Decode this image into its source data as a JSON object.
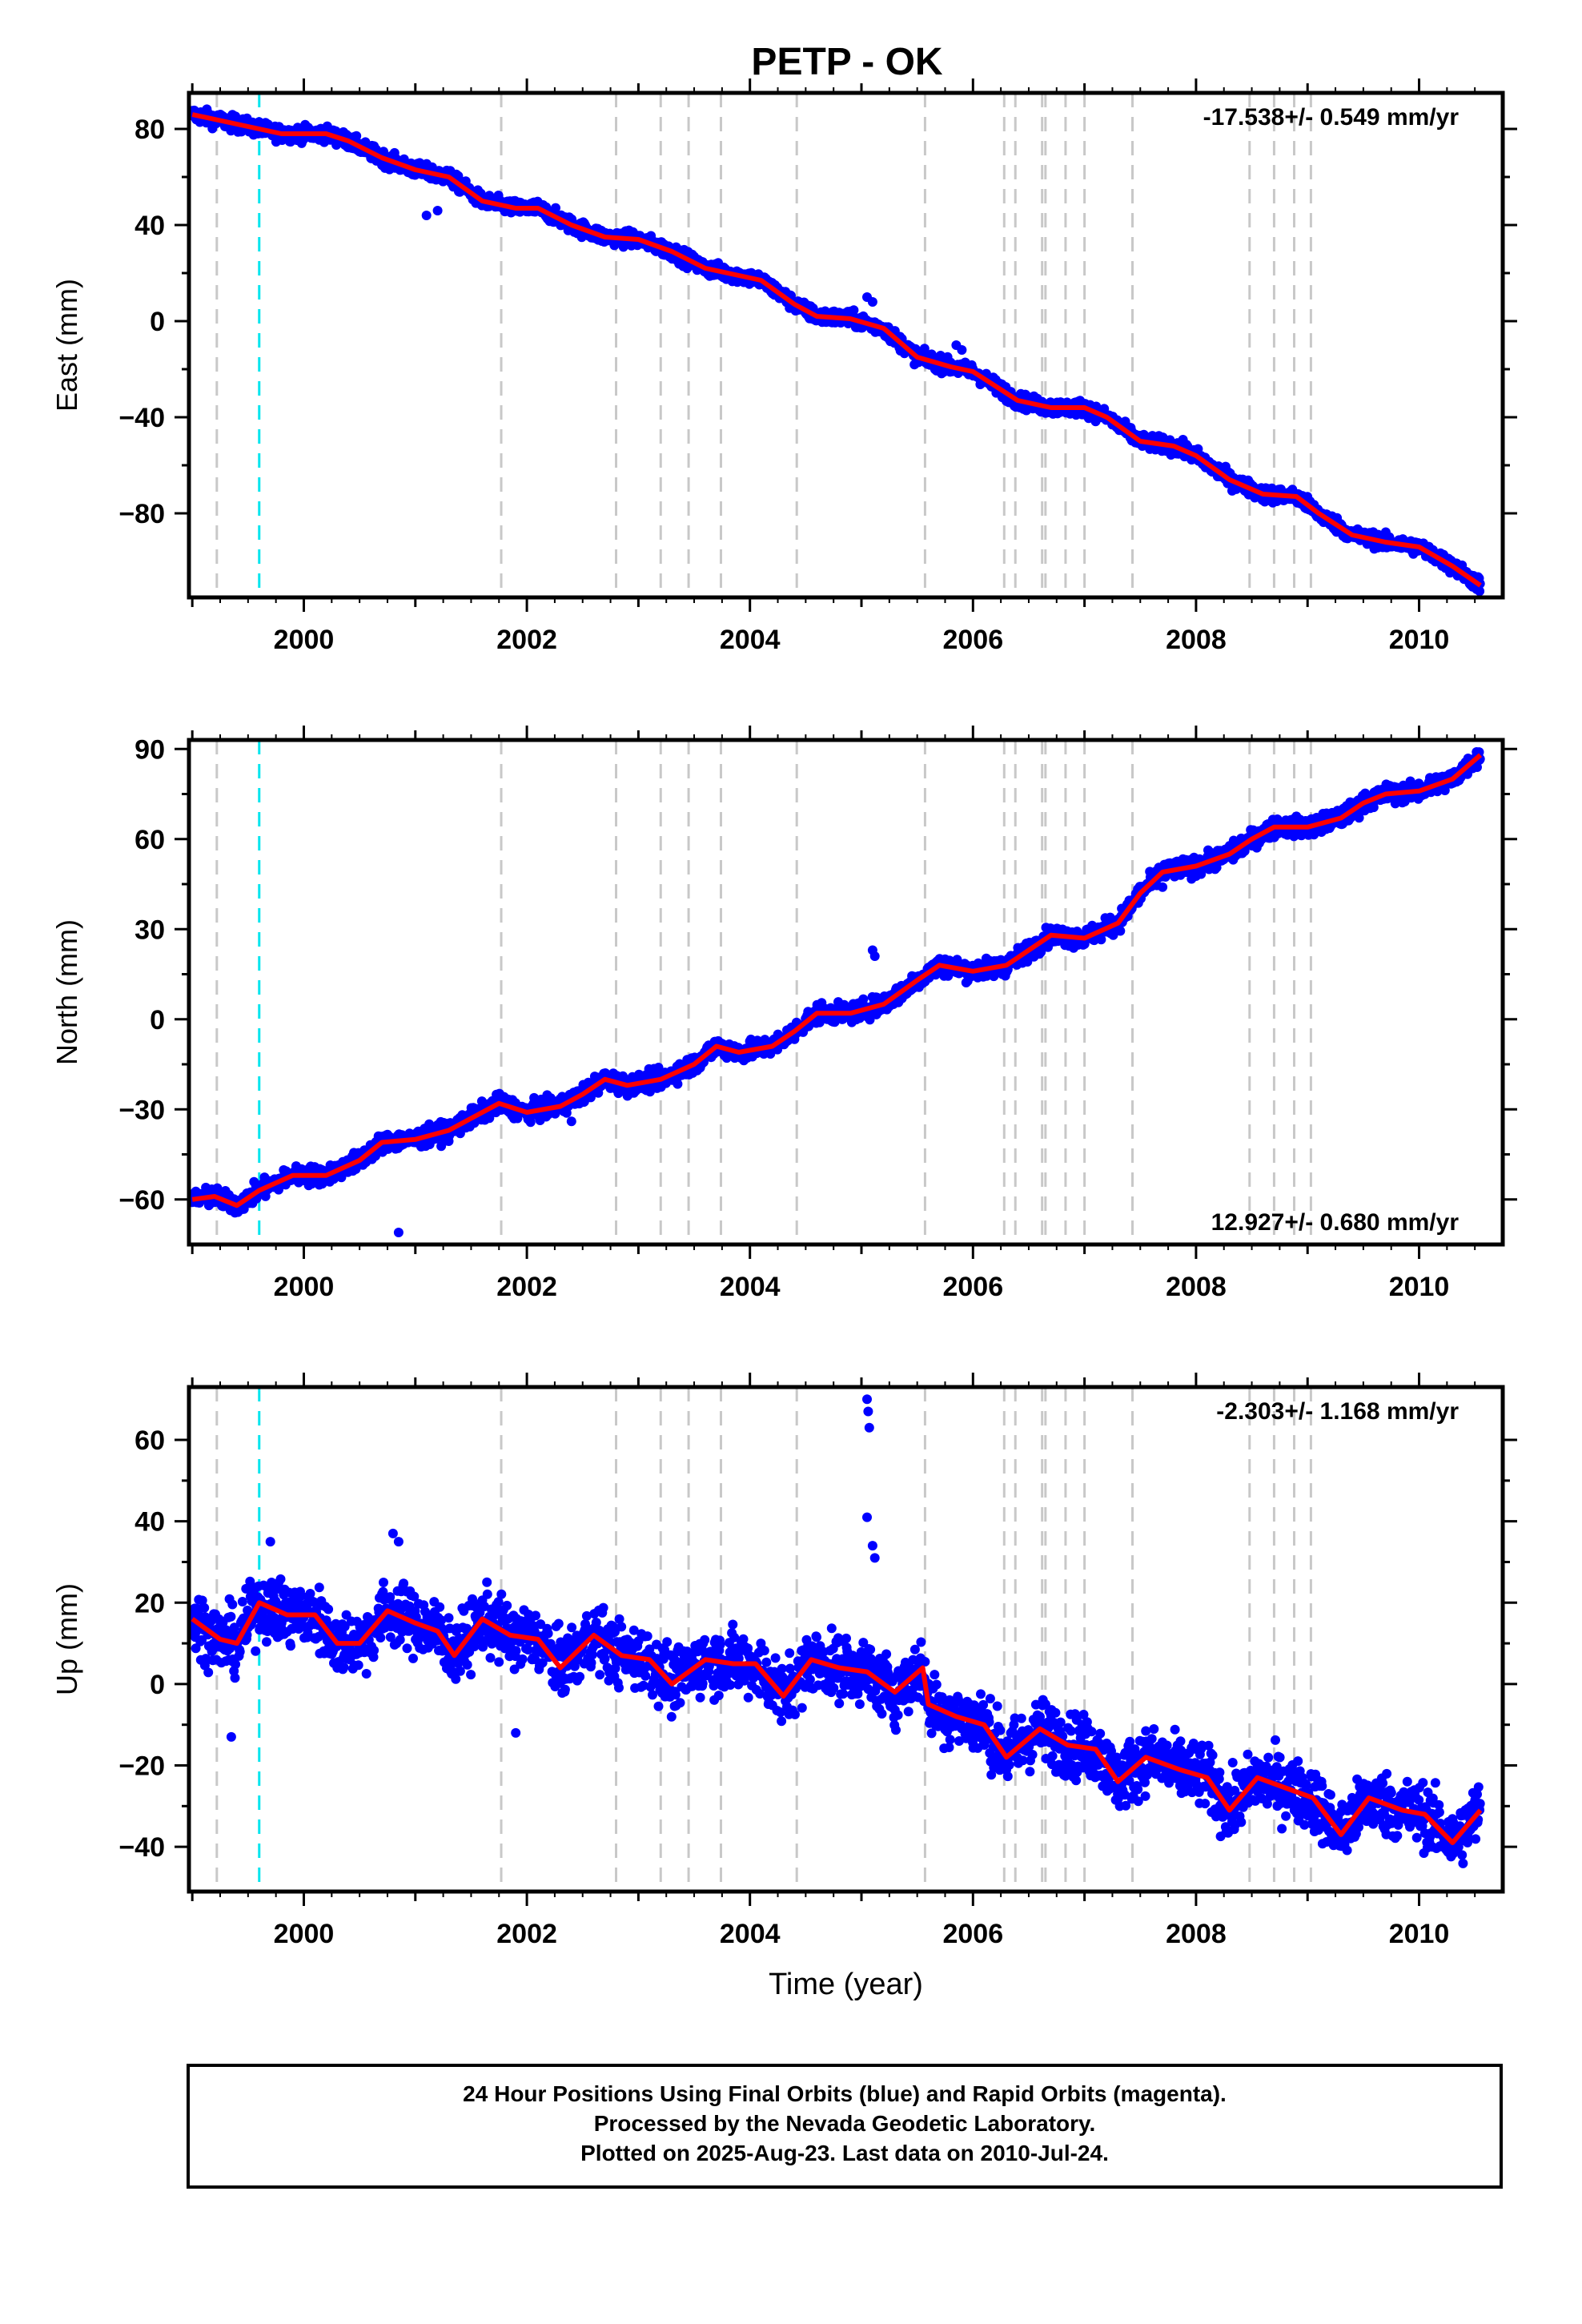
{
  "title": "PETP - OK",
  "chart_data": [
    {
      "type": "scatter",
      "ylabel": "East (mm)",
      "ylim": [
        -115,
        95
      ],
      "yticks": [
        80,
        40,
        0,
        -40,
        -80
      ],
      "xticks": [
        2000,
        2002,
        2004,
        2006,
        2008,
        2010
      ],
      "xlim": [
        1998.97,
        2010.75
      ],
      "rate_text": "-17.538+/- 0.549 mm/yr",
      "rate_position": "top-right",
      "trend_points": [
        [
          1999.0,
          86
        ],
        [
          1999.3,
          83
        ],
        [
          1999.6,
          80
        ],
        [
          1999.8,
          78
        ],
        [
          2000.2,
          78
        ],
        [
          2000.4,
          75
        ],
        [
          2000.7,
          68
        ],
        [
          2001.0,
          63
        ],
        [
          2001.3,
          60
        ],
        [
          2001.6,
          50
        ],
        [
          2001.9,
          47
        ],
        [
          2002.1,
          47
        ],
        [
          2002.4,
          40
        ],
        [
          2002.7,
          35
        ],
        [
          2003.0,
          34
        ],
        [
          2003.3,
          29
        ],
        [
          2003.6,
          22
        ],
        [
          2003.9,
          19
        ],
        [
          2004.1,
          17
        ],
        [
          2004.4,
          7
        ],
        [
          2004.6,
          2
        ],
        [
          2004.9,
          1
        ],
        [
          2005.2,
          -3
        ],
        [
          2005.5,
          -15
        ],
        [
          2005.8,
          -19
        ],
        [
          2006.0,
          -21
        ],
        [
          2006.2,
          -27
        ],
        [
          2006.4,
          -33
        ],
        [
          2006.7,
          -36
        ],
        [
          2007.0,
          -36
        ],
        [
          2007.2,
          -40
        ],
        [
          2007.5,
          -50
        ],
        [
          2007.8,
          -52
        ],
        [
          2008.0,
          -56
        ],
        [
          2008.3,
          -66
        ],
        [
          2008.6,
          -72
        ],
        [
          2008.9,
          -73
        ],
        [
          2009.1,
          -80
        ],
        [
          2009.4,
          -89
        ],
        [
          2009.7,
          -92
        ],
        [
          2010.0,
          -94
        ],
        [
          2010.3,
          -102
        ],
        [
          2010.55,
          -110
        ]
      ],
      "noise": 2.2,
      "outliers": [
        [
          2001.1,
          44
        ],
        [
          2001.2,
          46
        ],
        [
          2005.05,
          10
        ],
        [
          2005.1,
          8
        ],
        [
          2005.85,
          -10
        ],
        [
          2005.9,
          -12
        ]
      ]
    },
    {
      "type": "scatter",
      "ylabel": "North (mm)",
      "ylim": [
        -75,
        93
      ],
      "yticks": [
        90,
        60,
        30,
        0,
        -30,
        -60
      ],
      "xticks": [
        2000,
        2002,
        2004,
        2006,
        2008,
        2010
      ],
      "xlim": [
        1998.97,
        2010.75
      ],
      "rate_text": "12.927+/- 0.680 mm/yr",
      "rate_position": "bottom-right",
      "trend_points": [
        [
          1999.0,
          -60
        ],
        [
          1999.2,
          -59
        ],
        [
          1999.4,
          -62
        ],
        [
          1999.6,
          -57
        ],
        [
          1999.9,
          -52
        ],
        [
          2000.2,
          -52
        ],
        [
          2000.5,
          -47
        ],
        [
          2000.7,
          -41
        ],
        [
          2001.0,
          -40
        ],
        [
          2001.3,
          -37
        ],
        [
          2001.6,
          -31
        ],
        [
          2001.75,
          -28
        ],
        [
          2002.0,
          -31
        ],
        [
          2002.3,
          -29
        ],
        [
          2002.5,
          -25
        ],
        [
          2002.7,
          -20
        ],
        [
          2002.9,
          -22
        ],
        [
          2003.2,
          -20
        ],
        [
          2003.5,
          -15
        ],
        [
          2003.7,
          -9
        ],
        [
          2003.9,
          -11
        ],
        [
          2004.2,
          -9
        ],
        [
          2004.4,
          -4
        ],
        [
          2004.6,
          2
        ],
        [
          2004.9,
          2
        ],
        [
          2005.2,
          5
        ],
        [
          2005.5,
          13
        ],
        [
          2005.7,
          18
        ],
        [
          2006.0,
          16
        ],
        [
          2006.3,
          18
        ],
        [
          2006.5,
          23
        ],
        [
          2006.7,
          28
        ],
        [
          2007.0,
          27
        ],
        [
          2007.3,
          32
        ],
        [
          2007.5,
          42
        ],
        [
          2007.7,
          49
        ],
        [
          2008.0,
          51
        ],
        [
          2008.3,
          55
        ],
        [
          2008.5,
          60
        ],
        [
          2008.7,
          64
        ],
        [
          2009.0,
          64
        ],
        [
          2009.3,
          67
        ],
        [
          2009.5,
          72
        ],
        [
          2009.7,
          75
        ],
        [
          2010.0,
          76
        ],
        [
          2010.3,
          80
        ],
        [
          2010.55,
          88
        ]
      ],
      "noise": 2.2,
      "outliers": [
        [
          2000.85,
          -71
        ],
        [
          2005.1,
          23
        ],
        [
          2005.12,
          21
        ],
        [
          2002.4,
          -34
        ],
        [
          2007.7,
          44
        ]
      ]
    },
    {
      "type": "scatter",
      "ylabel": "Up (mm)",
      "xlabel": "Time (year)",
      "ylim": [
        -51,
        73
      ],
      "yticks": [
        60,
        40,
        20,
        0,
        -20,
        -40
      ],
      "xticks": [
        2000,
        2002,
        2004,
        2006,
        2008,
        2010
      ],
      "xlim": [
        1998.97,
        2010.75
      ],
      "rate_text": "-2.303+/- 1.168 mm/yr",
      "rate_position": "top-right",
      "trend_points": [
        [
          1999.0,
          16
        ],
        [
          1999.25,
          11
        ],
        [
          1999.4,
          10
        ],
        [
          1999.6,
          20
        ],
        [
          1999.85,
          17
        ],
        [
          2000.1,
          17
        ],
        [
          2000.3,
          10
        ],
        [
          2000.5,
          10
        ],
        [
          2000.75,
          18
        ],
        [
          2001.0,
          15
        ],
        [
          2001.2,
          13
        ],
        [
          2001.35,
          7
        ],
        [
          2001.6,
          16
        ],
        [
          2001.85,
          12
        ],
        [
          2002.1,
          11
        ],
        [
          2002.3,
          4
        ],
        [
          2002.6,
          12
        ],
        [
          2002.85,
          7
        ],
        [
          2003.1,
          6
        ],
        [
          2003.3,
          0
        ],
        [
          2003.6,
          6
        ],
        [
          2003.85,
          5
        ],
        [
          2004.05,
          5
        ],
        [
          2004.3,
          -3
        ],
        [
          2004.55,
          6
        ],
        [
          2004.8,
          4
        ],
        [
          2005.05,
          3
        ],
        [
          2005.3,
          -2
        ],
        [
          2005.55,
          4
        ],
        [
          2005.6,
          -5
        ],
        [
          2005.85,
          -8
        ],
        [
          2006.1,
          -10
        ],
        [
          2006.3,
          -18
        ],
        [
          2006.6,
          -11
        ],
        [
          2006.85,
          -15
        ],
        [
          2007.1,
          -16
        ],
        [
          2007.3,
          -24
        ],
        [
          2007.55,
          -18
        ],
        [
          2007.85,
          -21
        ],
        [
          2008.1,
          -23
        ],
        [
          2008.3,
          -31
        ],
        [
          2008.55,
          -23
        ],
        [
          2008.85,
          -26
        ],
        [
          2009.05,
          -28
        ],
        [
          2009.3,
          -37
        ],
        [
          2009.55,
          -28
        ],
        [
          2009.85,
          -31
        ],
        [
          2010.05,
          -32
        ],
        [
          2010.3,
          -39
        ],
        [
          2010.55,
          -31
        ]
      ],
      "noise": 5.5,
      "outliers": [
        [
          2005.05,
          70
        ],
        [
          2005.06,
          67
        ],
        [
          2005.07,
          63
        ],
        [
          2005.05,
          41
        ],
        [
          2005.1,
          34
        ],
        [
          2005.12,
          31
        ],
        [
          2000.8,
          37
        ],
        [
          2000.85,
          35
        ],
        [
          1999.35,
          -13
        ],
        [
          1999.7,
          35
        ],
        [
          2001.9,
          -12
        ]
      ]
    }
  ],
  "event_lines": {
    "gray_years": [
      1999.22,
      2001.77,
      2002.8,
      2003.2,
      2003.45,
      2003.74,
      2004.42,
      2005.57,
      2006.28,
      2006.38,
      2006.62,
      2006.65,
      2006.83,
      2007.0,
      2007.43,
      2008.48,
      2008.7,
      2008.88,
      2009.03
    ],
    "cyan_years": [
      1999.6
    ],
    "gray_color": "#c8c8c8",
    "cyan_color": "#00e5ee"
  },
  "colors": {
    "points": "#0000ff",
    "trend": "#ff0000",
    "frame": "#000000"
  },
  "footer": {
    "line1": "24 Hour Positions Using Final Orbits (blue) and Rapid Orbits (magenta).",
    "line2": "Processed by the Nevada Geodetic Laboratory.",
    "line3": "Plotted on 2025-Aug-23. Last data on 2010-Jul-24."
  }
}
